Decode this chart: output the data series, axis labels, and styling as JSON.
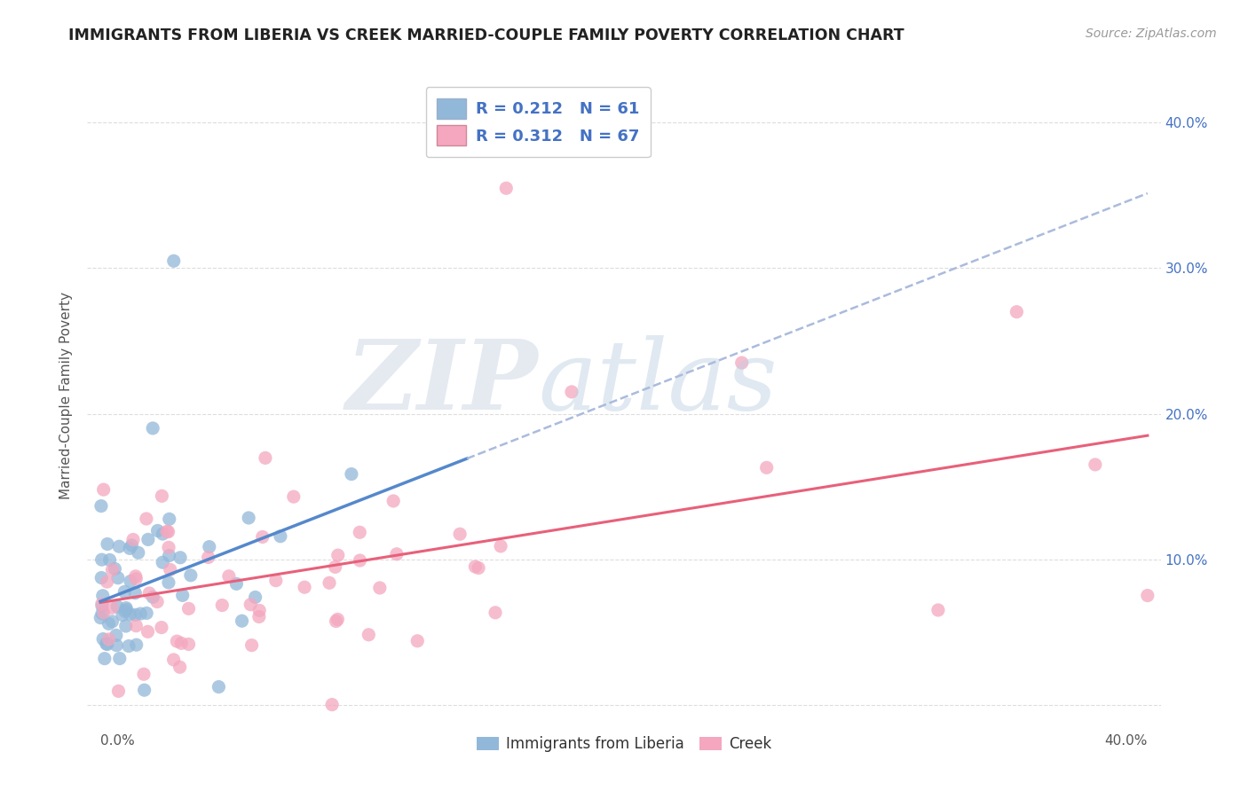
{
  "title": "IMMIGRANTS FROM LIBERIA VS CREEK MARRIED-COUPLE FAMILY POVERTY CORRELATION CHART",
  "source": "Source: ZipAtlas.com",
  "ylabel": "Married-Couple Family Poverty",
  "xlim": [
    -0.005,
    0.405
  ],
  "ylim": [
    -0.005,
    0.43
  ],
  "xticks": [
    0.0,
    0.1,
    0.2,
    0.3,
    0.4
  ],
  "xtick_labels": [
    "0.0%",
    "",
    "",
    "",
    "40.0%"
  ],
  "yticks": [
    0.0,
    0.1,
    0.2,
    0.3,
    0.4
  ],
  "ytick_labels_left": [
    "",
    "",
    "",
    "",
    ""
  ],
  "ytick_labels_right": [
    "",
    "10.0%",
    "20.0%",
    "30.0%",
    "40.0%"
  ],
  "legend1_r": "0.212",
  "legend1_n": "61",
  "legend2_r": "0.312",
  "legend2_n": "67",
  "liberia_color": "#92b8d9",
  "creek_color": "#f4a7bf",
  "trendline_blue_color": "#5588cc",
  "trendline_blue_dash_color": "#aabbdd",
  "trendline_pink_color": "#e8607a",
  "watermark_zip_color": "#d0d8e8",
  "watermark_atlas_color": "#c8dce8",
  "background_color": "#ffffff",
  "grid_color": "#dddddd",
  "right_tick_color": "#4472c4",
  "bottom_xtick_label_left": "0.0%",
  "bottom_xtick_label_right": "40.0%"
}
